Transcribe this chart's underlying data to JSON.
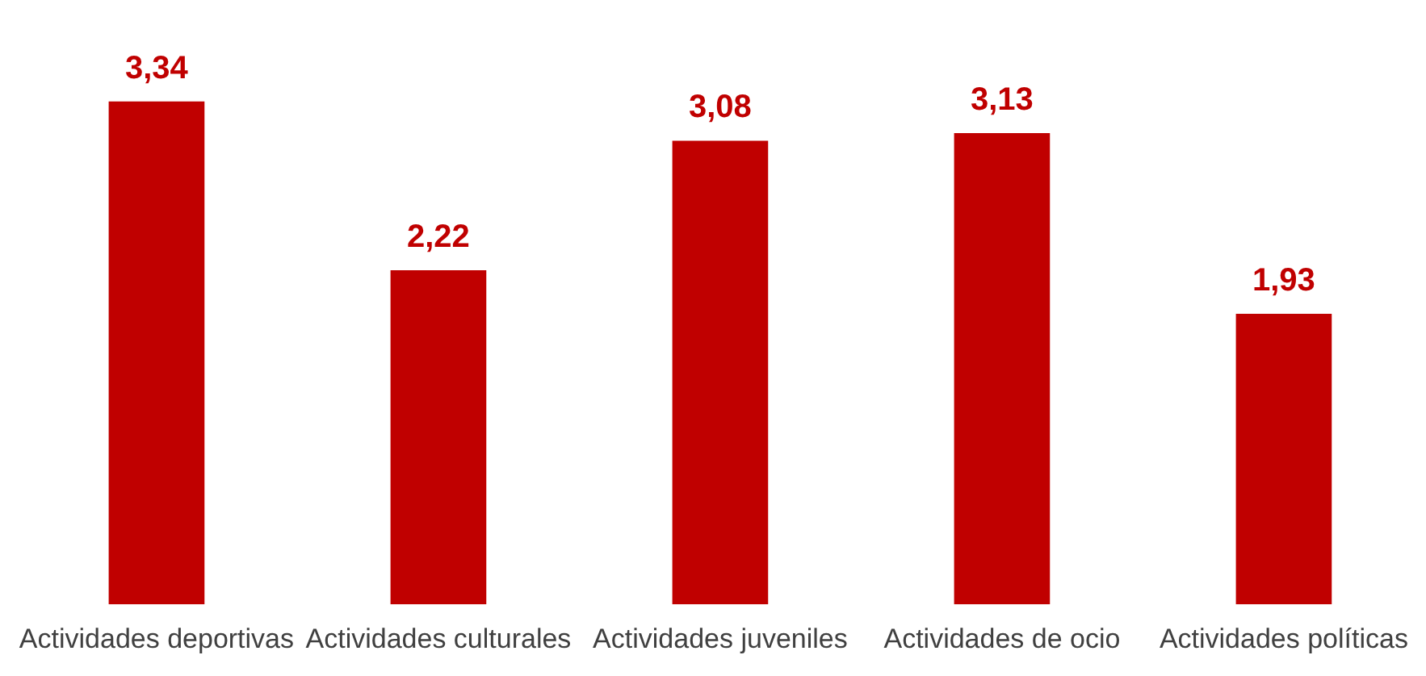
{
  "chart_data": {
    "type": "bar",
    "categories": [
      "Actividades deportivas",
      "Actividades culturales",
      "Actividades juveniles",
      "Actividades de ocio",
      "Actividades políticas"
    ],
    "values": [
      3.34,
      2.22,
      3.08,
      3.13,
      1.93
    ],
    "color": "#c00000",
    "value_labels": [
      "3,34",
      "2,22",
      "3,08",
      "3,13",
      "1,93"
    ],
    "grid": false,
    "tick_labels": "x",
    "legend": false
  }
}
